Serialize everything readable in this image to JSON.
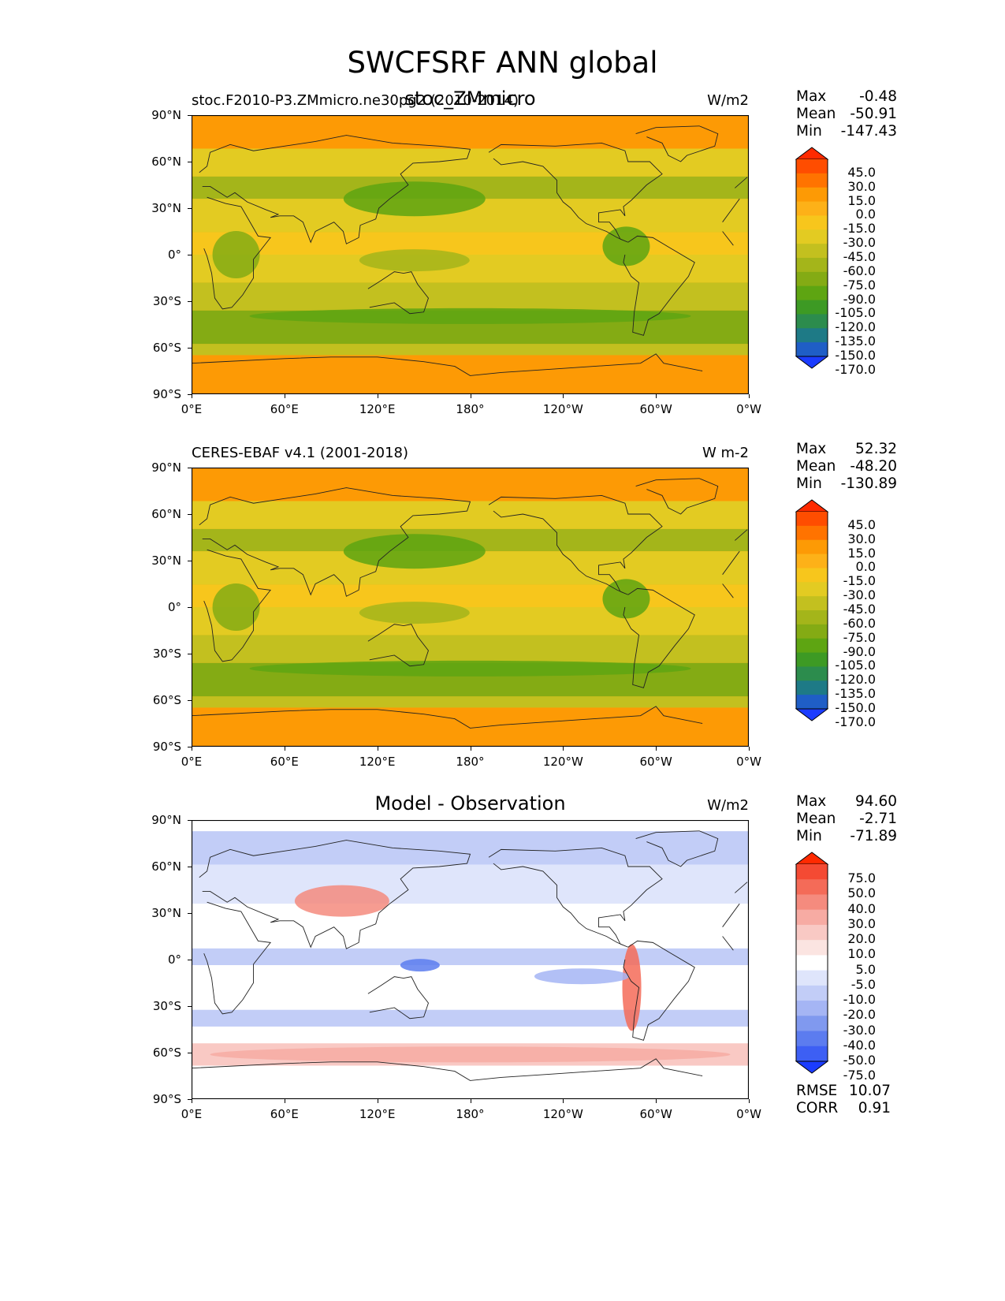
{
  "figure": {
    "title": "SWCFSRF ANN global",
    "longitude_ticks": [
      "0°E",
      "60°E",
      "120°E",
      "180°",
      "120°W",
      "60°W",
      "0°W"
    ],
    "latitude_ticks": [
      "90°N",
      "60°N",
      "30°N",
      "0°",
      "30°S",
      "60°S",
      "90°S"
    ]
  },
  "panels": [
    {
      "left_title": "stoc.F2010-P3.ZMmicro.ne30pg2 (2010-2014)",
      "center_title": "stoc_ZMmicro",
      "units": "W/m2",
      "stats": [
        {
          "label": "Max",
          "value": "-0.48"
        },
        {
          "label": "Mean",
          "value": "-50.91"
        },
        {
          "label": "Min",
          "value": "-147.43"
        }
      ],
      "colorbar_labels": [
        "45.0",
        "30.0",
        "15.0",
        "0.0",
        "-15.0",
        "-30.0",
        "-45.0",
        "-60.0",
        "-75.0",
        "-90.0",
        "-105.0",
        "-120.0",
        "-135.0",
        "-150.0",
        "-170.0"
      ],
      "colorbar_colors": [
        "#ff2a00",
        "#ff4d00",
        "#ff7300",
        "#fd9a05",
        "#fdb118",
        "#f7c61c",
        "#e3cb22",
        "#c3c01f",
        "#a4b51a",
        "#84ab14",
        "#5ea512",
        "#3d9a24",
        "#2c8c4d",
        "#1e7a86",
        "#1f5ec6",
        "#1b3cff"
      ]
    },
    {
      "left_title": "CERES-EBAF v4.1 (2001-2018)",
      "center_title": "",
      "units": "W m-2",
      "stats": [
        {
          "label": "Max",
          "value": "52.32"
        },
        {
          "label": "Mean",
          "value": "-48.20"
        },
        {
          "label": "Min",
          "value": "-130.89"
        }
      ],
      "colorbar_labels": [
        "45.0",
        "30.0",
        "15.0",
        "0.0",
        "-15.0",
        "-30.0",
        "-45.0",
        "-60.0",
        "-75.0",
        "-90.0",
        "-105.0",
        "-120.0",
        "-135.0",
        "-150.0",
        "-170.0"
      ],
      "colorbar_colors": [
        "#ff2a00",
        "#ff4d00",
        "#ff7300",
        "#fd9a05",
        "#fdb118",
        "#f7c61c",
        "#e3cb22",
        "#c3c01f",
        "#a4b51a",
        "#84ab14",
        "#5ea512",
        "#3d9a24",
        "#2c8c4d",
        "#1e7a86",
        "#1f5ec6",
        "#1b3cff"
      ]
    },
    {
      "left_title": "",
      "center_title": "Model - Observation",
      "units": "W/m2",
      "stats": [
        {
          "label": "Max",
          "value": "94.60"
        },
        {
          "label": "Mean",
          "value": "-2.71"
        },
        {
          "label": "Min",
          "value": "-71.89"
        }
      ],
      "colorbar_labels": [
        "75.0",
        "50.0",
        "40.0",
        "30.0",
        "20.0",
        "10.0",
        "5.0",
        "-5.0",
        "-10.0",
        "-20.0",
        "-30.0",
        "-40.0",
        "-50.0",
        "-75.0"
      ],
      "colorbar_colors": [
        "#ff2a00",
        "#f44a33",
        "#f46b58",
        "#f58b7e",
        "#f7aba3",
        "#f9c9c4",
        "#fbe4e1",
        "#ffffff",
        "#dfe5fb",
        "#c2cdf7",
        "#a5b5f4",
        "#8099ef",
        "#5c7cef",
        "#3d5ff4",
        "#1b3cff"
      ],
      "metrics": [
        {
          "label": "RMSE",
          "value": "10.07"
        },
        {
          "label": "CORR",
          "value": "0.91"
        }
      ]
    }
  ]
}
